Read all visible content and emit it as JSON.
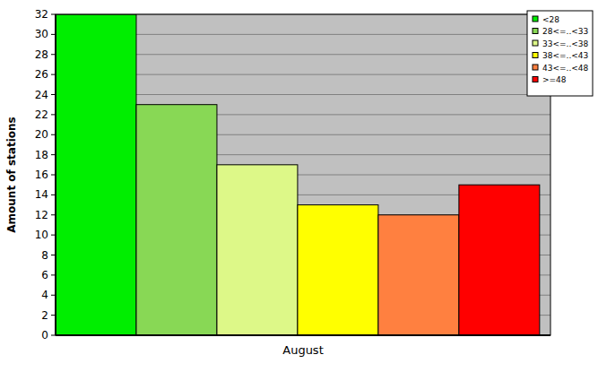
{
  "chart_data": {
    "type": "bar",
    "categories": [
      "August"
    ],
    "y_label": "Amount of stations",
    "series": [
      {
        "name": "<28",
        "color": "#00ee00",
        "values": [
          32
        ]
      },
      {
        "name": "28<=..<33",
        "color": "#88d855",
        "values": [
          23
        ]
      },
      {
        "name": "33<=..<38",
        "color": "#ddf888",
        "values": [
          17
        ]
      },
      {
        "name": "38<=..<43",
        "color": "#ffff00",
        "values": [
          13
        ]
      },
      {
        "name": "43<=..<48",
        "color": "#ff8040",
        "values": [
          12
        ]
      },
      {
        "name": ">=48",
        "color": "#ff0000",
        "values": [
          15
        ]
      }
    ],
    "ylim": [
      0,
      32
    ],
    "yticks": [
      0,
      2,
      4,
      6,
      8,
      10,
      12,
      14,
      16,
      18,
      20,
      22,
      24,
      26,
      28,
      30,
      32
    ],
    "grid": true,
    "legend": "top-right"
  }
}
